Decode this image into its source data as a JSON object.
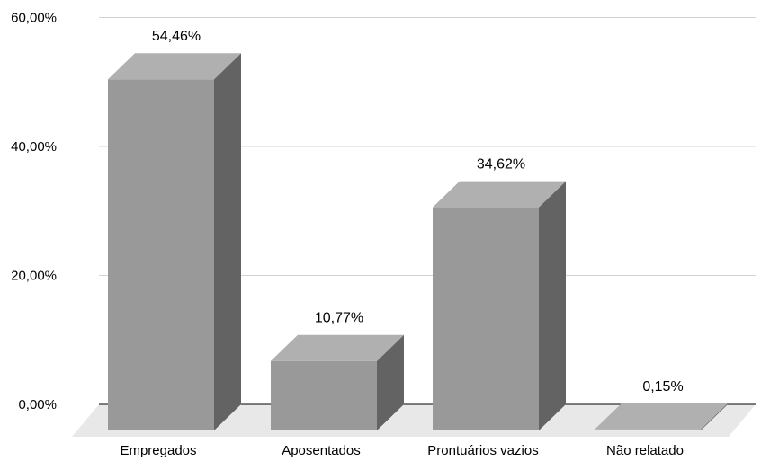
{
  "chart_data": {
    "type": "bar",
    "style": "3d-column",
    "categories": [
      "Empregados",
      "Aposentados",
      "Prontuários vazios",
      "Não relatado"
    ],
    "values": [
      54.46,
      10.77,
      34.62,
      0.15
    ],
    "data_labels": [
      "54,46%",
      "10,77%",
      "34,62%",
      "0,15%"
    ],
    "title": "",
    "xlabel": "",
    "ylabel": "",
    "ylim": [
      0,
      60
    ],
    "y_ticks": [
      0,
      20,
      40,
      60
    ],
    "y_tick_labels": [
      "0,00%",
      "20,00%",
      "40,00%",
      "60,00%"
    ],
    "grid": true,
    "legend": "none",
    "colors": {
      "front": "#999999",
      "top": "#b0b0b0",
      "side": "#636363",
      "floor": "#e8e8e8",
      "grid": "#d3d3d3",
      "axis": "#000000"
    }
  }
}
